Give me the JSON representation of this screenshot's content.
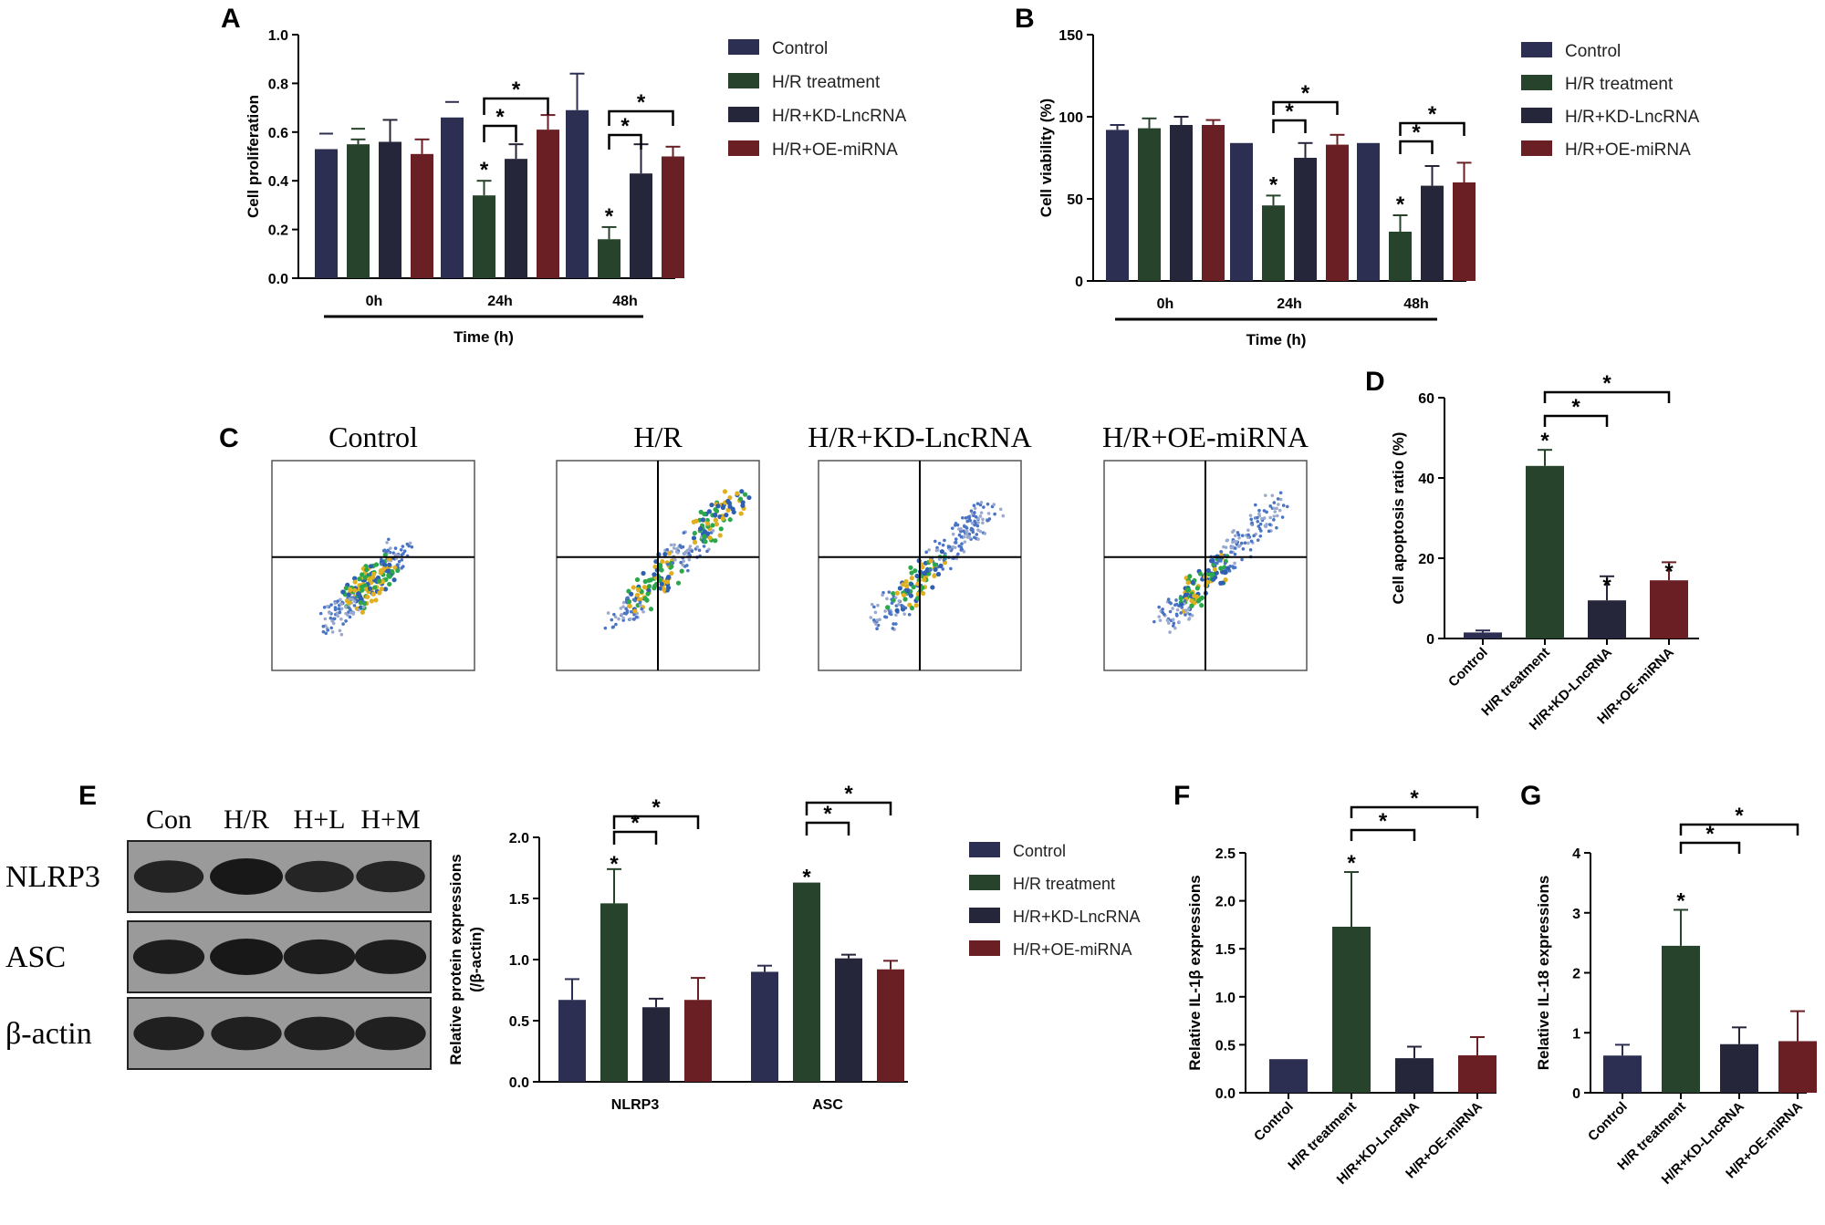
{
  "colors": {
    "Control": "#2c2f52",
    "H/R treatment": "#27432c",
    "H/R+KD-LncRNA": "#26263a",
    "H/R+OE-miRNA": "#6a1f25",
    "flow_lines": "#000000"
  },
  "panels": {
    "A": "A",
    "B": "B",
    "C": "C",
    "D": "D",
    "E": "E",
    "F": "F",
    "G": "G"
  },
  "legends": {
    "ab": [
      "Control",
      "H/R treatment",
      "H/R+KD-LncRNA",
      "H/R+OE-miRNA"
    ],
    "e": [
      "Control",
      "H/R treatment",
      "H/R+KD-LncRNA",
      "H/R+OE-miRNA"
    ]
  },
  "flow": {
    "titles": [
      "Control",
      "H/R",
      "H/R+KD-LncRNA",
      "H/R+OE-miRNA"
    ]
  },
  "blot": {
    "lanes": [
      "Con",
      "H/R",
      "H+L",
      "H+M"
    ],
    "rows": [
      "NLRP3",
      "ASC",
      "β-actin"
    ],
    "intensity": [
      [
        0.8,
        1.0,
        0.75,
        0.75
      ],
      [
        0.9,
        1.0,
        0.92,
        0.9
      ],
      [
        0.85,
        0.85,
        0.85,
        0.85
      ]
    ]
  },
  "chart_data": [
    {
      "id": "A",
      "type": "bar",
      "categories": [
        "0h",
        "24h",
        "48h"
      ],
      "series": [
        {
          "name": "Control",
          "values": [
            0.53,
            0.66,
            0.69
          ],
          "err": [
            0.0,
            0.0,
            0.15
          ]
        },
        {
          "name": "H/R treatment",
          "values": [
            0.55,
            0.34,
            0.16
          ],
          "err": [
            0.02,
            0.06,
            0.05
          ]
        },
        {
          "name": "H/R+KD-LncRNA",
          "values": [
            0.56,
            0.49,
            0.43
          ],
          "err": [
            0.09,
            0.06,
            0.12
          ]
        },
        {
          "name": "H/R+OE-miRNA",
          "values": [
            0.51,
            0.61,
            0.5
          ],
          "err": [
            0.06,
            0.06,
            0.04
          ]
        }
      ],
      "xlabel": "Time (h)",
      "ylabel": "Cell proliferation",
      "ylim": [
        0,
        1.0
      ],
      "yticks": [
        "0.0",
        "0.2",
        "0.4",
        "0.6",
        "0.8",
        "1.0"
      ],
      "star": "*"
    },
    {
      "id": "B",
      "type": "bar",
      "categories": [
        "0h",
        "24h",
        "48h"
      ],
      "series": [
        {
          "name": "Control",
          "values": [
            92,
            84,
            84
          ],
          "err": [
            3,
            0,
            0
          ]
        },
        {
          "name": "H/R treatment",
          "values": [
            93,
            46,
            30
          ],
          "err": [
            6,
            6,
            10
          ]
        },
        {
          "name": "H/R+KD-LncRNA",
          "values": [
            95,
            75,
            58
          ],
          "err": [
            5,
            9,
            12
          ]
        },
        {
          "name": "H/R+OE-miRNA",
          "values": [
            95,
            83,
            60
          ],
          "err": [
            3,
            6,
            12
          ]
        }
      ],
      "xlabel": "Time (h)",
      "ylabel": "Cell viability (%)",
      "ylim": [
        0,
        150
      ],
      "yticks": [
        "0",
        "50",
        "100",
        "150"
      ],
      "star": "*"
    },
    {
      "id": "D",
      "type": "bar",
      "categories": [
        "Control",
        "H/R treatment",
        "H/R+KD-LncRNA",
        "H/R+OE-miRNA"
      ],
      "values": [
        1.5,
        43,
        9.5,
        14.5
      ],
      "err": [
        0.5,
        4,
        6,
        4.5
      ],
      "xlabel": "",
      "ylabel": "Cell apoptosis ratio (%)",
      "ylim": [
        0,
        60
      ],
      "yticks": [
        "0",
        "20",
        "40",
        "60"
      ],
      "star": "*"
    },
    {
      "id": "E",
      "type": "bar",
      "categories": [
        "NLRP3",
        "ASC"
      ],
      "series": [
        {
          "name": "Control",
          "values": [
            0.67,
            0.9
          ],
          "err": [
            0.17,
            0.05
          ]
        },
        {
          "name": "H/R treatment",
          "values": [
            1.46,
            1.63
          ],
          "err": [
            0.28,
            0.0
          ]
        },
        {
          "name": "H/R+KD-LncRNA",
          "values": [
            0.61,
            1.01
          ],
          "err": [
            0.07,
            0.03
          ]
        },
        {
          "name": "H/R+OE-miRNA",
          "values": [
            0.67,
            0.92
          ],
          "err": [
            0.18,
            0.07
          ]
        }
      ],
      "xlabel": "",
      "ylabel": "Relative protein expressions",
      "ylabel2": "(/β-actin)",
      "ylim": [
        0,
        2.0
      ],
      "yticks": [
        "0.0",
        "0.5",
        "1.0",
        "1.5",
        "2.0"
      ],
      "star": "*"
    },
    {
      "id": "F",
      "type": "bar",
      "categories": [
        "Control",
        "H/R treatment",
        "H/R+KD-LncRNA",
        "H/R+OE-miRNA"
      ],
      "values": [
        0.35,
        1.73,
        0.36,
        0.39
      ],
      "err": [
        0.0,
        0.57,
        0.12,
        0.19
      ],
      "xlabel": "",
      "ylabel": "Relative IL-1β expressions",
      "ylim": [
        0,
        2.5
      ],
      "yticks": [
        "0.0",
        "0.5",
        "1.0",
        "1.5",
        "2.0",
        "2.5"
      ],
      "star": "*"
    },
    {
      "id": "G",
      "type": "bar",
      "categories": [
        "Control",
        "H/R treatment",
        "H/R+KD-LncRNA",
        "H/R+OE-miRNA"
      ],
      "values": [
        0.62,
        2.45,
        0.81,
        0.86
      ],
      "err": [
        0.18,
        0.6,
        0.28,
        0.5
      ],
      "xlabel": "",
      "ylabel": "Relative IL-18 expressions",
      "ylim": [
        0,
        4
      ],
      "yticks": [
        "0",
        "1",
        "2",
        "3",
        "4"
      ],
      "star": "*"
    }
  ]
}
